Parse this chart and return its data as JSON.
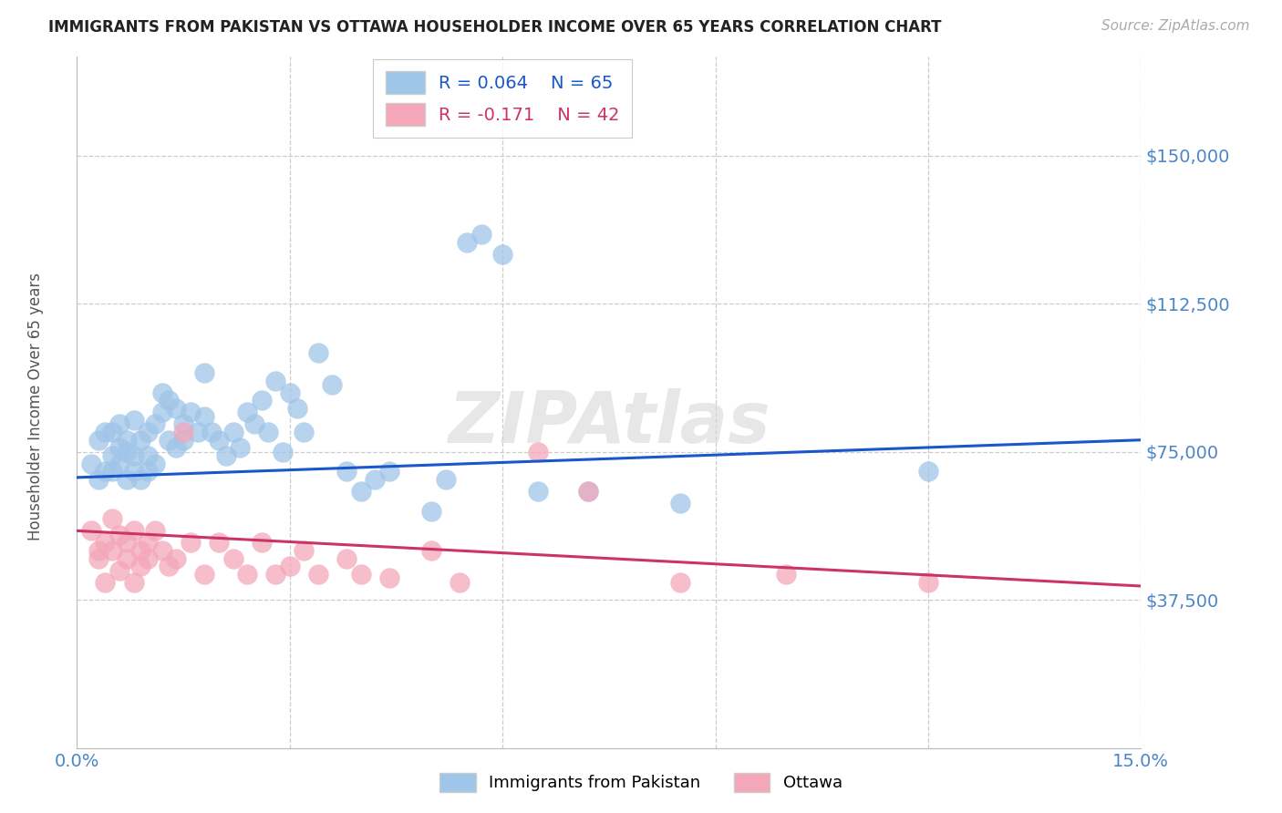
{
  "title": "IMMIGRANTS FROM PAKISTAN VS OTTAWA HOUSEHOLDER INCOME OVER 65 YEARS CORRELATION CHART",
  "source": "Source: ZipAtlas.com",
  "ylabel": "Householder Income Over 65 years",
  "xlim": [
    0.0,
    0.15
  ],
  "ylim": [
    0,
    175000
  ],
  "yticks": [
    0,
    37500,
    75000,
    112500,
    150000
  ],
  "ytick_labels": [
    "",
    "$37,500",
    "$75,000",
    "$112,500",
    "$150,000"
  ],
  "xticks": [
    0.0,
    0.03,
    0.06,
    0.09,
    0.12,
    0.15
  ],
  "xtick_labels": [
    "0.0%",
    "",
    "",
    "",
    "",
    "15.0%"
  ],
  "legend1_R": "R = 0.064",
  "legend1_N": "N = 65",
  "legend2_R": "R = -0.171",
  "legend2_N": "N = 42",
  "blue_color": "#9fc5e8",
  "pink_color": "#f4a7b9",
  "blue_line_color": "#1a56cc",
  "pink_line_color": "#cc3366",
  "title_color": "#222222",
  "axis_label_color": "#555555",
  "tick_label_color": "#4a86c8",
  "grid_color": "#cccccc",
  "blue_scatter_x": [
    0.002,
    0.003,
    0.003,
    0.004,
    0.004,
    0.005,
    0.005,
    0.005,
    0.006,
    0.006,
    0.006,
    0.007,
    0.007,
    0.007,
    0.008,
    0.008,
    0.008,
    0.009,
    0.009,
    0.01,
    0.01,
    0.01,
    0.011,
    0.011,
    0.012,
    0.012,
    0.013,
    0.013,
    0.014,
    0.014,
    0.015,
    0.015,
    0.016,
    0.017,
    0.018,
    0.018,
    0.019,
    0.02,
    0.021,
    0.022,
    0.023,
    0.024,
    0.025,
    0.026,
    0.027,
    0.028,
    0.029,
    0.03,
    0.031,
    0.032,
    0.034,
    0.036,
    0.038,
    0.04,
    0.042,
    0.044,
    0.05,
    0.052,
    0.055,
    0.057,
    0.06,
    0.065,
    0.072,
    0.085,
    0.12
  ],
  "blue_scatter_y": [
    72000,
    68000,
    78000,
    70000,
    80000,
    74000,
    70000,
    80000,
    76000,
    72000,
    82000,
    78000,
    68000,
    75000,
    74000,
    70000,
    83000,
    78000,
    68000,
    74000,
    70000,
    80000,
    82000,
    72000,
    90000,
    85000,
    88000,
    78000,
    86000,
    76000,
    82000,
    78000,
    85000,
    80000,
    84000,
    95000,
    80000,
    78000,
    74000,
    80000,
    76000,
    85000,
    82000,
    88000,
    80000,
    93000,
    75000,
    90000,
    86000,
    80000,
    100000,
    92000,
    70000,
    65000,
    68000,
    70000,
    60000,
    68000,
    128000,
    130000,
    125000,
    65000,
    65000,
    62000,
    70000
  ],
  "pink_scatter_x": [
    0.002,
    0.003,
    0.003,
    0.004,
    0.004,
    0.005,
    0.005,
    0.006,
    0.006,
    0.007,
    0.007,
    0.008,
    0.008,
    0.009,
    0.009,
    0.01,
    0.01,
    0.011,
    0.012,
    0.013,
    0.014,
    0.015,
    0.016,
    0.018,
    0.02,
    0.022,
    0.024,
    0.026,
    0.028,
    0.03,
    0.032,
    0.034,
    0.038,
    0.04,
    0.044,
    0.05,
    0.054,
    0.065,
    0.072,
    0.085,
    0.1,
    0.12
  ],
  "pink_scatter_y": [
    55000,
    50000,
    48000,
    52000,
    42000,
    58000,
    50000,
    54000,
    45000,
    52000,
    48000,
    55000,
    42000,
    50000,
    46000,
    52000,
    48000,
    55000,
    50000,
    46000,
    48000,
    80000,
    52000,
    44000,
    52000,
    48000,
    44000,
    52000,
    44000,
    46000,
    50000,
    44000,
    48000,
    44000,
    43000,
    50000,
    42000,
    75000,
    65000,
    42000,
    44000,
    42000
  ],
  "blue_line_x0": 0.0,
  "blue_line_y0": 68500,
  "blue_line_x1": 0.15,
  "blue_line_y1": 78000,
  "pink_line_x0": 0.0,
  "pink_line_y0": 55000,
  "pink_line_x1": 0.15,
  "pink_line_y1": 41000
}
